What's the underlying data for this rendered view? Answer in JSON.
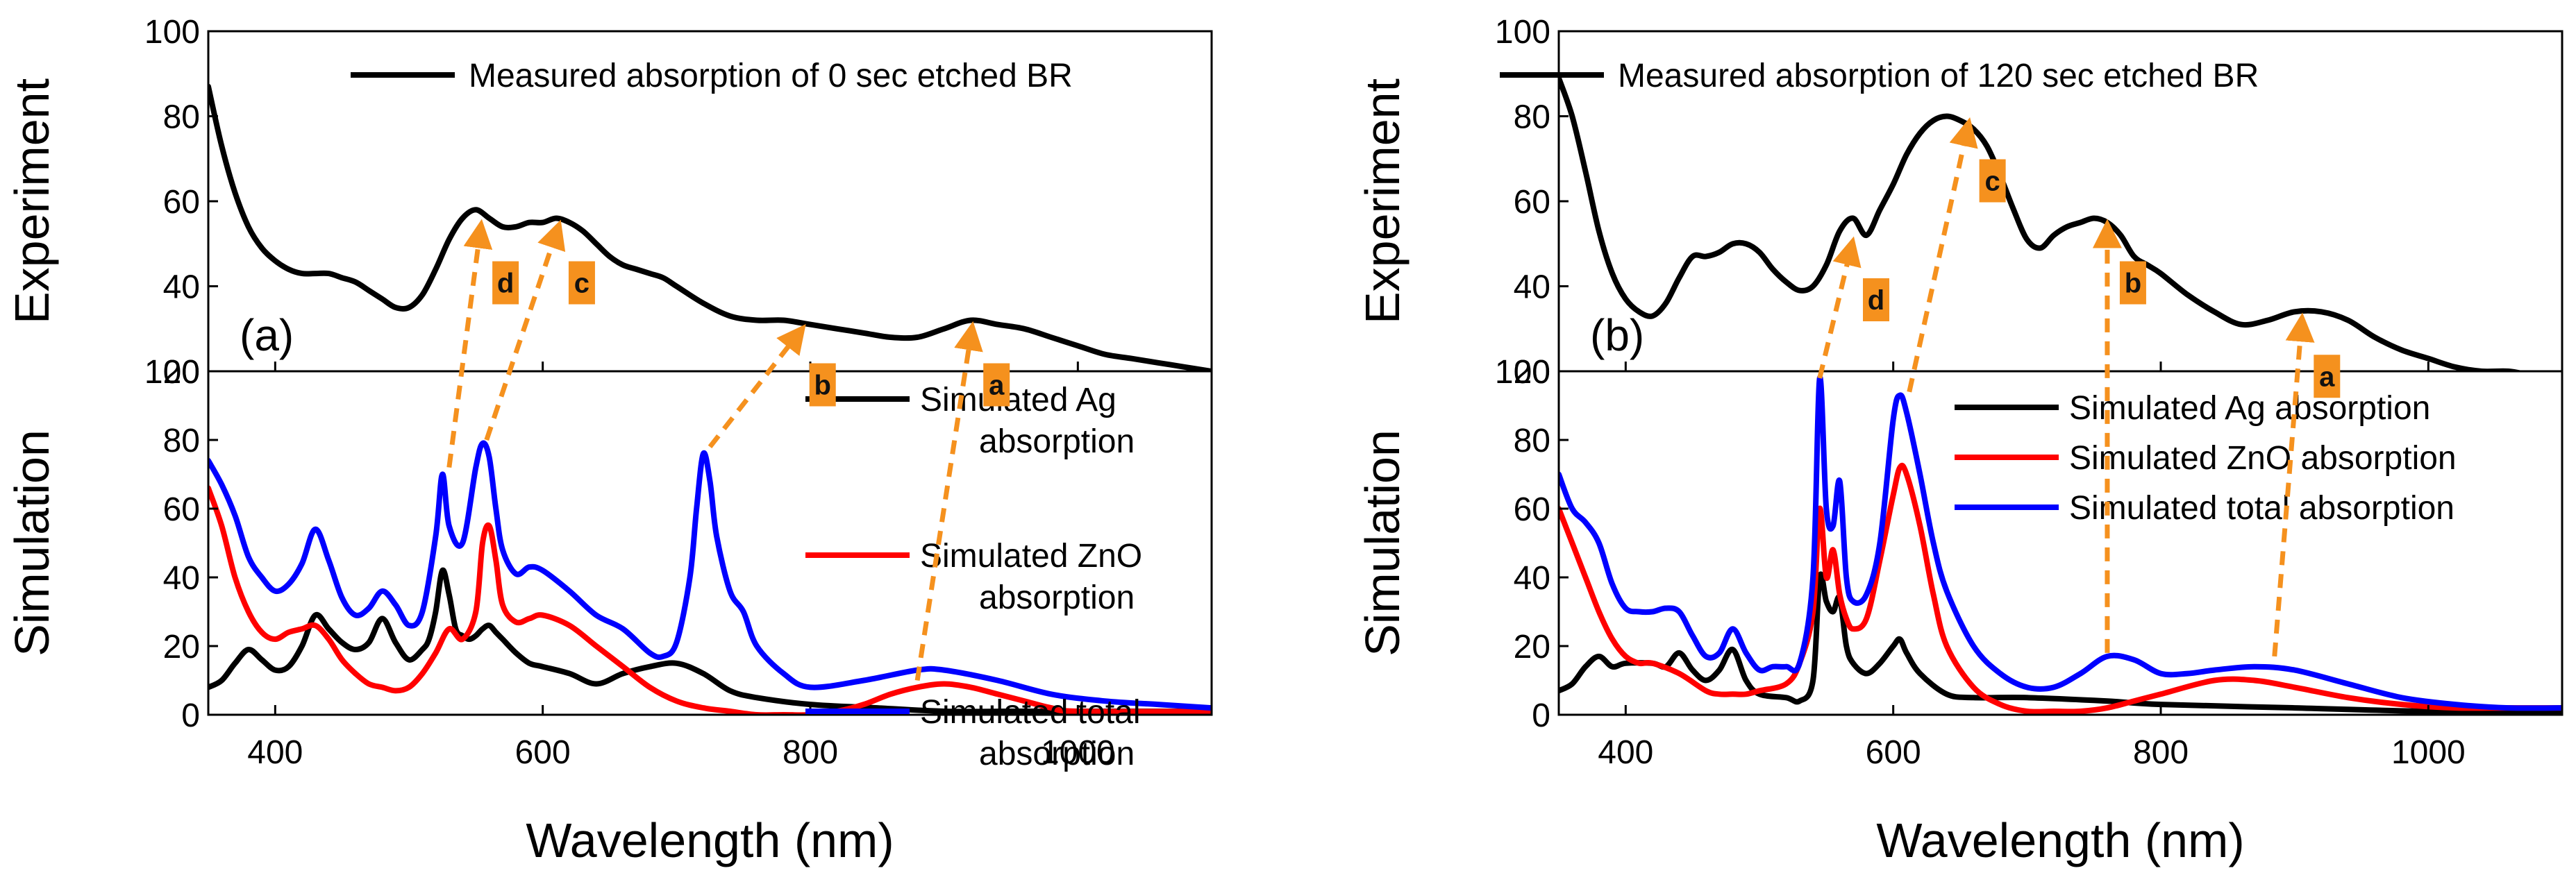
{
  "chart_data": [
    {
      "type": "line",
      "panel_label": "(a)",
      "xlabel": "Wavelength (nm)",
      "xlim": [
        350,
        1100
      ],
      "xticks": [
        400,
        600,
        800,
        1000
      ],
      "top": {
        "ylabel": "Experiment",
        "ylim": [
          20,
          100
        ],
        "yticks": [
          20,
          40,
          60,
          80,
          100
        ],
        "series": [
          {
            "name": "Measured absorption of 0 sec etched BR",
            "color": "#000000",
            "x": [
              350,
              360,
              370,
              380,
              390,
              400,
              410,
              420,
              430,
              440,
              450,
              460,
              470,
              480,
              490,
              500,
              510,
              520,
              530,
              540,
              550,
              560,
              570,
              580,
              590,
              600,
              610,
              620,
              630,
              640,
              650,
              660,
              670,
              680,
              690,
              700,
              720,
              740,
              760,
              780,
              800,
              820,
              840,
              860,
              880,
              900,
              920,
              940,
              960,
              980,
              1000,
              1020,
              1040,
              1060,
              1080,
              1100
            ],
            "y": [
              87,
              73,
              62,
              54,
              49,
              46,
              44,
              43,
              43,
              43,
              42,
              41,
              39,
              37,
              35,
              35,
              38,
              44,
              51,
              56,
              58,
              56,
              54,
              54,
              55,
              55,
              56,
              55,
              53,
              50,
              47,
              45,
              44,
              43,
              42,
              40,
              36,
              33,
              32,
              32,
              31,
              30,
              29,
              28,
              28,
              30,
              32,
              31,
              30,
              28,
              26,
              24,
              23,
              22,
              21,
              20
            ]
          }
        ]
      },
      "bottom": {
        "ylabel": "Simulation",
        "ylim": [
          0,
          100
        ],
        "yticks": [
          0,
          20,
          40,
          60,
          80,
          100
        ],
        "series": [
          {
            "name": "Simulated Ag absorption",
            "legend_lines": [
              "Simulated Ag",
              "absorption"
            ],
            "color": "#000000",
            "x": [
              350,
              360,
              370,
              380,
              390,
              400,
              410,
              420,
              430,
              440,
              450,
              460,
              470,
              480,
              490,
              500,
              510,
              515,
              520,
              525,
              530,
              535,
              540,
              545,
              550,
              555,
              560,
              565,
              570,
              580,
              590,
              600,
              620,
              640,
              660,
              680,
              700,
              720,
              740,
              760,
              800,
              850,
              900,
              950,
              1000,
              1100
            ],
            "y": [
              8,
              10,
              15,
              19,
              16,
              13,
              14,
              20,
              29,
              25,
              21,
              19,
              21,
              28,
              21,
              16,
              19,
              22,
              30,
              42,
              35,
              25,
              23,
              22,
              23,
              25,
              26,
              24,
              22,
              18,
              15,
              14,
              12,
              9,
              12,
              14,
              15,
              12,
              7,
              5,
              3,
              2,
              1,
              1,
              1,
              1
            ]
          },
          {
            "name": "Simulated ZnO absorption",
            "legend_lines": [
              "Simulated ZnO",
              "absorption"
            ],
            "color": "#ff0000",
            "x": [
              350,
              360,
              370,
              380,
              390,
              400,
              410,
              420,
              430,
              440,
              450,
              460,
              470,
              480,
              490,
              500,
              510,
              520,
              530,
              540,
              550,
              555,
              560,
              565,
              570,
              580,
              590,
              600,
              620,
              640,
              660,
              680,
              700,
              720,
              740,
              760,
              780,
              800,
              820,
              840,
              860,
              880,
              900,
              920,
              940,
              960,
              980,
              1000,
              1100
            ],
            "y": [
              66,
              55,
              40,
              30,
              24,
              22,
              24,
              25,
              26,
              22,
              16,
              12,
              9,
              8,
              7,
              8,
              12,
              18,
              25,
              22,
              30,
              50,
              55,
              45,
              32,
              27,
              28,
              29,
              26,
              20,
              14,
              8,
              4,
              2,
              1,
              0,
              0,
              0,
              1,
              3,
              6,
              8,
              9,
              8,
              6,
              4,
              2,
              1,
              1
            ]
          },
          {
            "name": "Simulated total absorption",
            "legend_lines": [
              "Simulated total",
              "absorption"
            ],
            "color": "#0000ff",
            "x": [
              350,
              360,
              370,
              380,
              390,
              400,
              410,
              420,
              430,
              440,
              450,
              460,
              470,
              480,
              490,
              500,
              510,
              520,
              525,
              530,
              540,
              550,
              555,
              560,
              565,
              570,
              580,
              590,
              600,
              620,
              640,
              660,
              680,
              690,
              700,
              710,
              715,
              720,
              725,
              730,
              740,
              750,
              760,
              780,
              800,
              840,
              880,
              900,
              940,
              980,
              1020,
              1060,
              1100
            ],
            "y": [
              74,
              67,
              58,
              46,
              40,
              36,
              38,
              44,
              54,
              45,
              34,
              29,
              31,
              36,
              32,
              26,
              30,
              52,
              70,
              55,
              50,
              72,
              79,
              75,
              60,
              48,
              41,
              43,
              42,
              36,
              29,
              25,
              18,
              17,
              21,
              40,
              60,
              76,
              68,
              52,
              36,
              30,
              20,
              12,
              8,
              10,
              13,
              13,
              10,
              6,
              4,
              3,
              2
            ]
          }
        ]
      },
      "annotations": [
        {
          "label": "a",
          "from": [
            880,
            10
          ],
          "to": [
            920,
            32
          ]
        },
        {
          "label": "b",
          "from": [
            725,
            78
          ],
          "to": [
            790,
            32
          ]
        },
        {
          "label": "c",
          "from": [
            558,
            80
          ],
          "to": [
            610,
            56
          ]
        },
        {
          "label": "d",
          "from": [
            530,
            72
          ],
          "to": [
            553,
            56
          ]
        }
      ]
    },
    {
      "type": "line",
      "panel_label": "(b)",
      "xlabel": "Wavelength (nm)",
      "xlim": [
        350,
        1100
      ],
      "xticks": [
        400,
        600,
        800,
        1000
      ],
      "top": {
        "ylabel": "Experiment",
        "ylim": [
          20,
          100
        ],
        "yticks": [
          20,
          40,
          60,
          80,
          100
        ],
        "series": [
          {
            "name": "Measured absorption of 120 sec etched BR",
            "color": "#000000",
            "x": [
              350,
              360,
              370,
              380,
              390,
              400,
              410,
              420,
              430,
              440,
              450,
              460,
              470,
              480,
              490,
              500,
              510,
              520,
              530,
              540,
              550,
              560,
              570,
              580,
              590,
              600,
              610,
              620,
              630,
              640,
              650,
              660,
              670,
              680,
              690,
              700,
              710,
              720,
              730,
              740,
              750,
              760,
              770,
              780,
              790,
              800,
              820,
              840,
              860,
              880,
              900,
              920,
              940,
              960,
              980,
              1000,
              1020,
              1040,
              1060,
              1080,
              1100
            ],
            "y": [
              89,
              80,
              67,
              53,
              43,
              37,
              34,
              33,
              36,
              42,
              47,
              47,
              48,
              50,
              50,
              48,
              44,
              41,
              39,
              40,
              45,
              53,
              56,
              52,
              58,
              64,
              71,
              76,
              79,
              80,
              79,
              77,
              73,
              66,
              58,
              51,
              49,
              52,
              54,
              55,
              56,
              55,
              52,
              47,
              45,
              43,
              38,
              34,
              31,
              32,
              34,
              34,
              32,
              28,
              25,
              23,
              21,
              20,
              20,
              19,
              19
            ]
          }
        ]
      },
      "bottom": {
        "ylabel": "Simulation",
        "ylim": [
          0,
          100
        ],
        "yticks": [
          0,
          20,
          40,
          60,
          80,
          100
        ],
        "series": [
          {
            "name": "Simulated Ag absorption",
            "legend_lines": [
              "Simulated Ag absorption"
            ],
            "color": "#000000",
            "x": [
              350,
              360,
              370,
              380,
              390,
              400,
              420,
              430,
              440,
              450,
              460,
              470,
              480,
              490,
              500,
              520,
              530,
              540,
              545,
              550,
              555,
              560,
              565,
              570,
              580,
              590,
              600,
              605,
              610,
              620,
              640,
              660,
              700,
              760,
              800,
              900,
              1000,
              1100
            ],
            "y": [
              7,
              9,
              14,
              17,
              14,
              15,
              15,
              14,
              18,
              13,
              10,
              13,
              19,
              10,
              6,
              5,
              4,
              10,
              40,
              33,
              30,
              34,
              20,
              15,
              12,
              15,
              20,
              22,
              18,
              12,
              6,
              5,
              5,
              4,
              3,
              2,
              1,
              1
            ]
          },
          {
            "name": "Simulated ZnO absorption",
            "legend_lines": [
              "Simulated ZnO absorption"
            ],
            "color": "#ff0000",
            "x": [
              350,
              360,
              370,
              380,
              390,
              400,
              410,
              420,
              440,
              460,
              470,
              480,
              490,
              500,
              520,
              530,
              540,
              545,
              550,
              555,
              560,
              565,
              570,
              580,
              590,
              600,
              605,
              610,
              620,
              630,
              640,
              660,
              680,
              700,
              720,
              740,
              760,
              780,
              800,
              840,
              870,
              900,
              940,
              980,
              1020,
              1060,
              1100
            ],
            "y": [
              60,
              50,
              40,
              30,
              22,
              17,
              15,
              15,
              12,
              7,
              6,
              6,
              6,
              7,
              9,
              15,
              30,
              60,
              40,
              48,
              35,
              28,
              25,
              28,
              45,
              64,
              72,
              70,
              55,
              35,
              20,
              8,
              3,
              1,
              1,
              1,
              2,
              4,
              6,
              10,
              10,
              8,
              5,
              3,
              2,
              2,
              2
            ]
          },
          {
            "name": "Simulated total absorption",
            "legend_lines": [
              "Simulated total absorption"
            ],
            "color": "#0000ff",
            "x": [
              350,
              360,
              370,
              380,
              390,
              400,
              410,
              420,
              430,
              440,
              450,
              460,
              470,
              480,
              490,
              500,
              510,
              520,
              530,
              540,
              545,
              550,
              555,
              560,
              565,
              570,
              580,
              590,
              600,
              605,
              610,
              620,
              630,
              640,
              660,
              680,
              700,
              720,
              740,
              760,
              780,
              800,
              820,
              840,
              870,
              900,
              940,
              980,
              1020,
              1060,
              1100
            ],
            "y": [
              70,
              60,
              56,
              50,
              38,
              31,
              30,
              30,
              31,
              30,
              23,
              17,
              18,
              25,
              18,
              13,
              14,
              14,
              15,
              40,
              98,
              60,
              55,
              68,
              40,
              33,
              35,
              50,
              86,
              93,
              88,
              70,
              50,
              36,
              20,
              12,
              8,
              8,
              12,
              17,
              16,
              12,
              12,
              13,
              14,
              13,
              9,
              5,
              3,
              2,
              2
            ]
          }
        ]
      },
      "annotations": [
        {
          "label": "a",
          "from": [
            885,
            17
          ],
          "to": [
            905,
            34
          ]
        },
        {
          "label": "b",
          "from": [
            760,
            18
          ],
          "to": [
            760,
            56
          ]
        },
        {
          "label": "c",
          "from": [
            612,
            94
          ],
          "to": [
            655,
            80
          ]
        },
        {
          "label": "d",
          "from": [
            545,
            98
          ],
          "to": [
            568,
            52
          ]
        }
      ]
    }
  ]
}
